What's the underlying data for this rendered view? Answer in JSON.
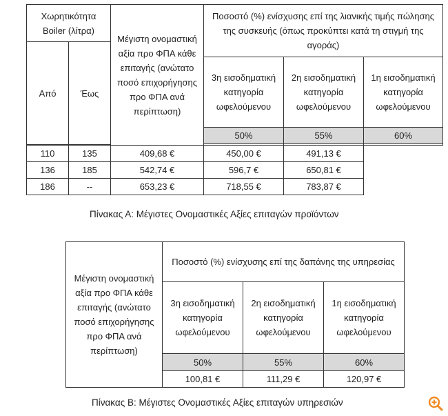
{
  "table_a": {
    "capacity_header": "Χωρητικότητα Boiler (λίτρα)",
    "from_label": "Από",
    "to_label": "Έως",
    "max_value_header": "Μέγιστη ονομαστική αξία προ ΦΠΑ κάθε επιταγής (ανώτατο ποσό επιχορήγησης προ ΦΠΑ ανά περίπτωση)",
    "percent_header": "Ποσοστό (%) ενίσχυσης  επί της λιανικής τιμής πώλησης της συσκευής (όπως προκύπτει κατά τη στιγμή της αγοράς)",
    "categories": [
      {
        "label": "3η εισοδηματική κατηγορία ωφελούμενου",
        "percent": "50%"
      },
      {
        "label": "2η εισοδηματική κατηγορία ωφελούμενου",
        "percent": "55%"
      },
      {
        "label": "1η εισοδηματική κατηγορία ωφελούμενου",
        "percent": "60%"
      }
    ],
    "rows": [
      {
        "from": "110",
        "to": "135",
        "values": [
          "409,68 €",
          "450,00 €",
          "491,13 €"
        ]
      },
      {
        "from": "136",
        "to": "185",
        "values": [
          "542,74 €",
          "596,7 €",
          "650,81 €"
        ]
      },
      {
        "from": "186",
        "to": "--",
        "values": [
          "653,23 €",
          "718,55 €",
          "783,87 €"
        ]
      }
    ],
    "caption": "Πίνακας Α: Μέγιστες Ονομαστικές Αξίες επιταγών προϊόντων"
  },
  "table_b": {
    "max_value_header": "Μέγιστη ονομαστική αξία προ ΦΠΑ κάθε επιταγής (ανώτατο ποσό επιχορήγησης προ ΦΠΑ ανά περίπτωση)",
    "percent_header": "Ποσοστό (%) ενίσχυσης  επί της δαπάνης της υπηρεσίας",
    "categories": [
      {
        "label": "3η εισοδηματική κατηγορία ωφελούμενου",
        "percent": "50%"
      },
      {
        "label": "2η εισοδηματική κατηγορία ωφελούμενου",
        "percent": "55%"
      },
      {
        "label": "1η εισοδηματική κατηγορία ωφελούμενου",
        "percent": "60%"
      }
    ],
    "values": [
      "100,81 €",
      "111,29 €",
      "120,97 €"
    ],
    "caption": "Πίνακας Β: Μέγιστες Ονομαστικές Αξίες επιταγών υπηρεσιών"
  },
  "icons": {
    "zoom": "zoom-in-icon"
  },
  "colors": {
    "zoom_icon": "#f08a24",
    "shade": "#d9d9d9"
  }
}
